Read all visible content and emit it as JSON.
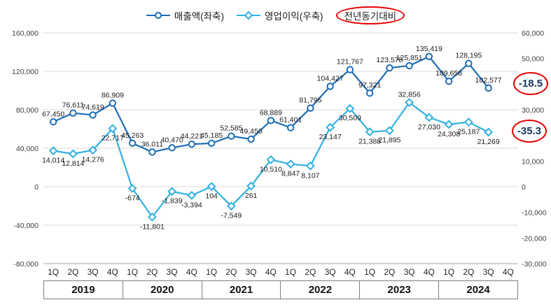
{
  "chart_data": {
    "type": "line",
    "title": "",
    "legend": {
      "position": "top",
      "extra_label": "전년동기대비"
    },
    "quarter_labels": [
      "1Q",
      "2Q",
      "3Q",
      "4Q"
    ],
    "years": [
      "2019",
      "2020",
      "2021",
      "2022",
      "2023",
      "2024"
    ],
    "series": [
      {
        "name": "매출액(좌축)",
        "axis": "left",
        "marker": "circle",
        "color": "#1e6db6",
        "label_position": "above",
        "values": [
          67450,
          76611,
          74619,
          86909,
          45263,
          36011,
          40470,
          44221,
          45185,
          52585,
          49450,
          68889,
          61401,
          81795,
          104427,
          121767,
          97321,
          123578,
          125851,
          135419,
          109658,
          128195,
          102577
        ]
      },
      {
        "name": "영업이익(우축)",
        "axis": "right",
        "marker": "diamond",
        "color": "#31b1e0",
        "label_position": "below",
        "label_above_indices": [
          18
        ],
        "values": [
          14014,
          12814,
          14276,
          22717,
          -674,
          -11801,
          -1839,
          -3394,
          104,
          -7549,
          261,
          10510,
          8847,
          8107,
          23147,
          30509,
          21388,
          21895,
          32856,
          27030,
          24308,
          25187,
          21269
        ]
      }
    ],
    "left_axis": {
      "min": -80000,
      "max": 160000,
      "step": 40000
    },
    "right_axis": {
      "min": -30000,
      "max": 60000,
      "step": 10000
    },
    "grid": true,
    "annotations": [
      {
        "text": "-18.5"
      },
      {
        "text": "-35.3"
      }
    ],
    "colors": {
      "annotation_circle": "#e60000",
      "annotation_text": "#17375e",
      "gridline": "#d9d9d9",
      "axis_line": "#a6a6a6"
    }
  }
}
